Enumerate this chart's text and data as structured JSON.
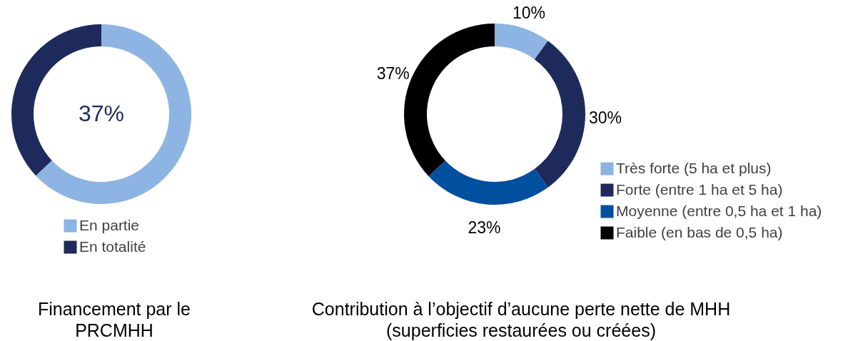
{
  "chart_data": [
    {
      "type": "donut",
      "title": "Financement par le PRCMHH",
      "categories": [
        "En partie",
        "En totalité"
      ],
      "values": [
        63,
        37
      ],
      "colors": [
        "#8db4e2",
        "#1f2a5c"
      ],
      "annotations": [
        "37%"
      ],
      "legend": "bottom"
    },
    {
      "type": "donut",
      "title": "Contribution à l’objectif d’aucune perte nette de MHH (superficies restaurées ou créées)",
      "categories": [
        "Très forte (5 ha et plus)",
        "Forte (entre 1 ha et 5 ha)",
        "Moyenne (entre 0,5 ha et 1 ha)",
        "Faible (en bas de 0,5 ha)"
      ],
      "values": [
        10,
        30,
        23,
        37
      ],
      "value_labels": [
        "10%",
        "30%",
        "23%",
        "37%"
      ],
      "colors": [
        "#8db4e2",
        "#1f2a5c",
        "#0050a0",
        "#000000"
      ],
      "legend": "bottom right"
    }
  ]
}
